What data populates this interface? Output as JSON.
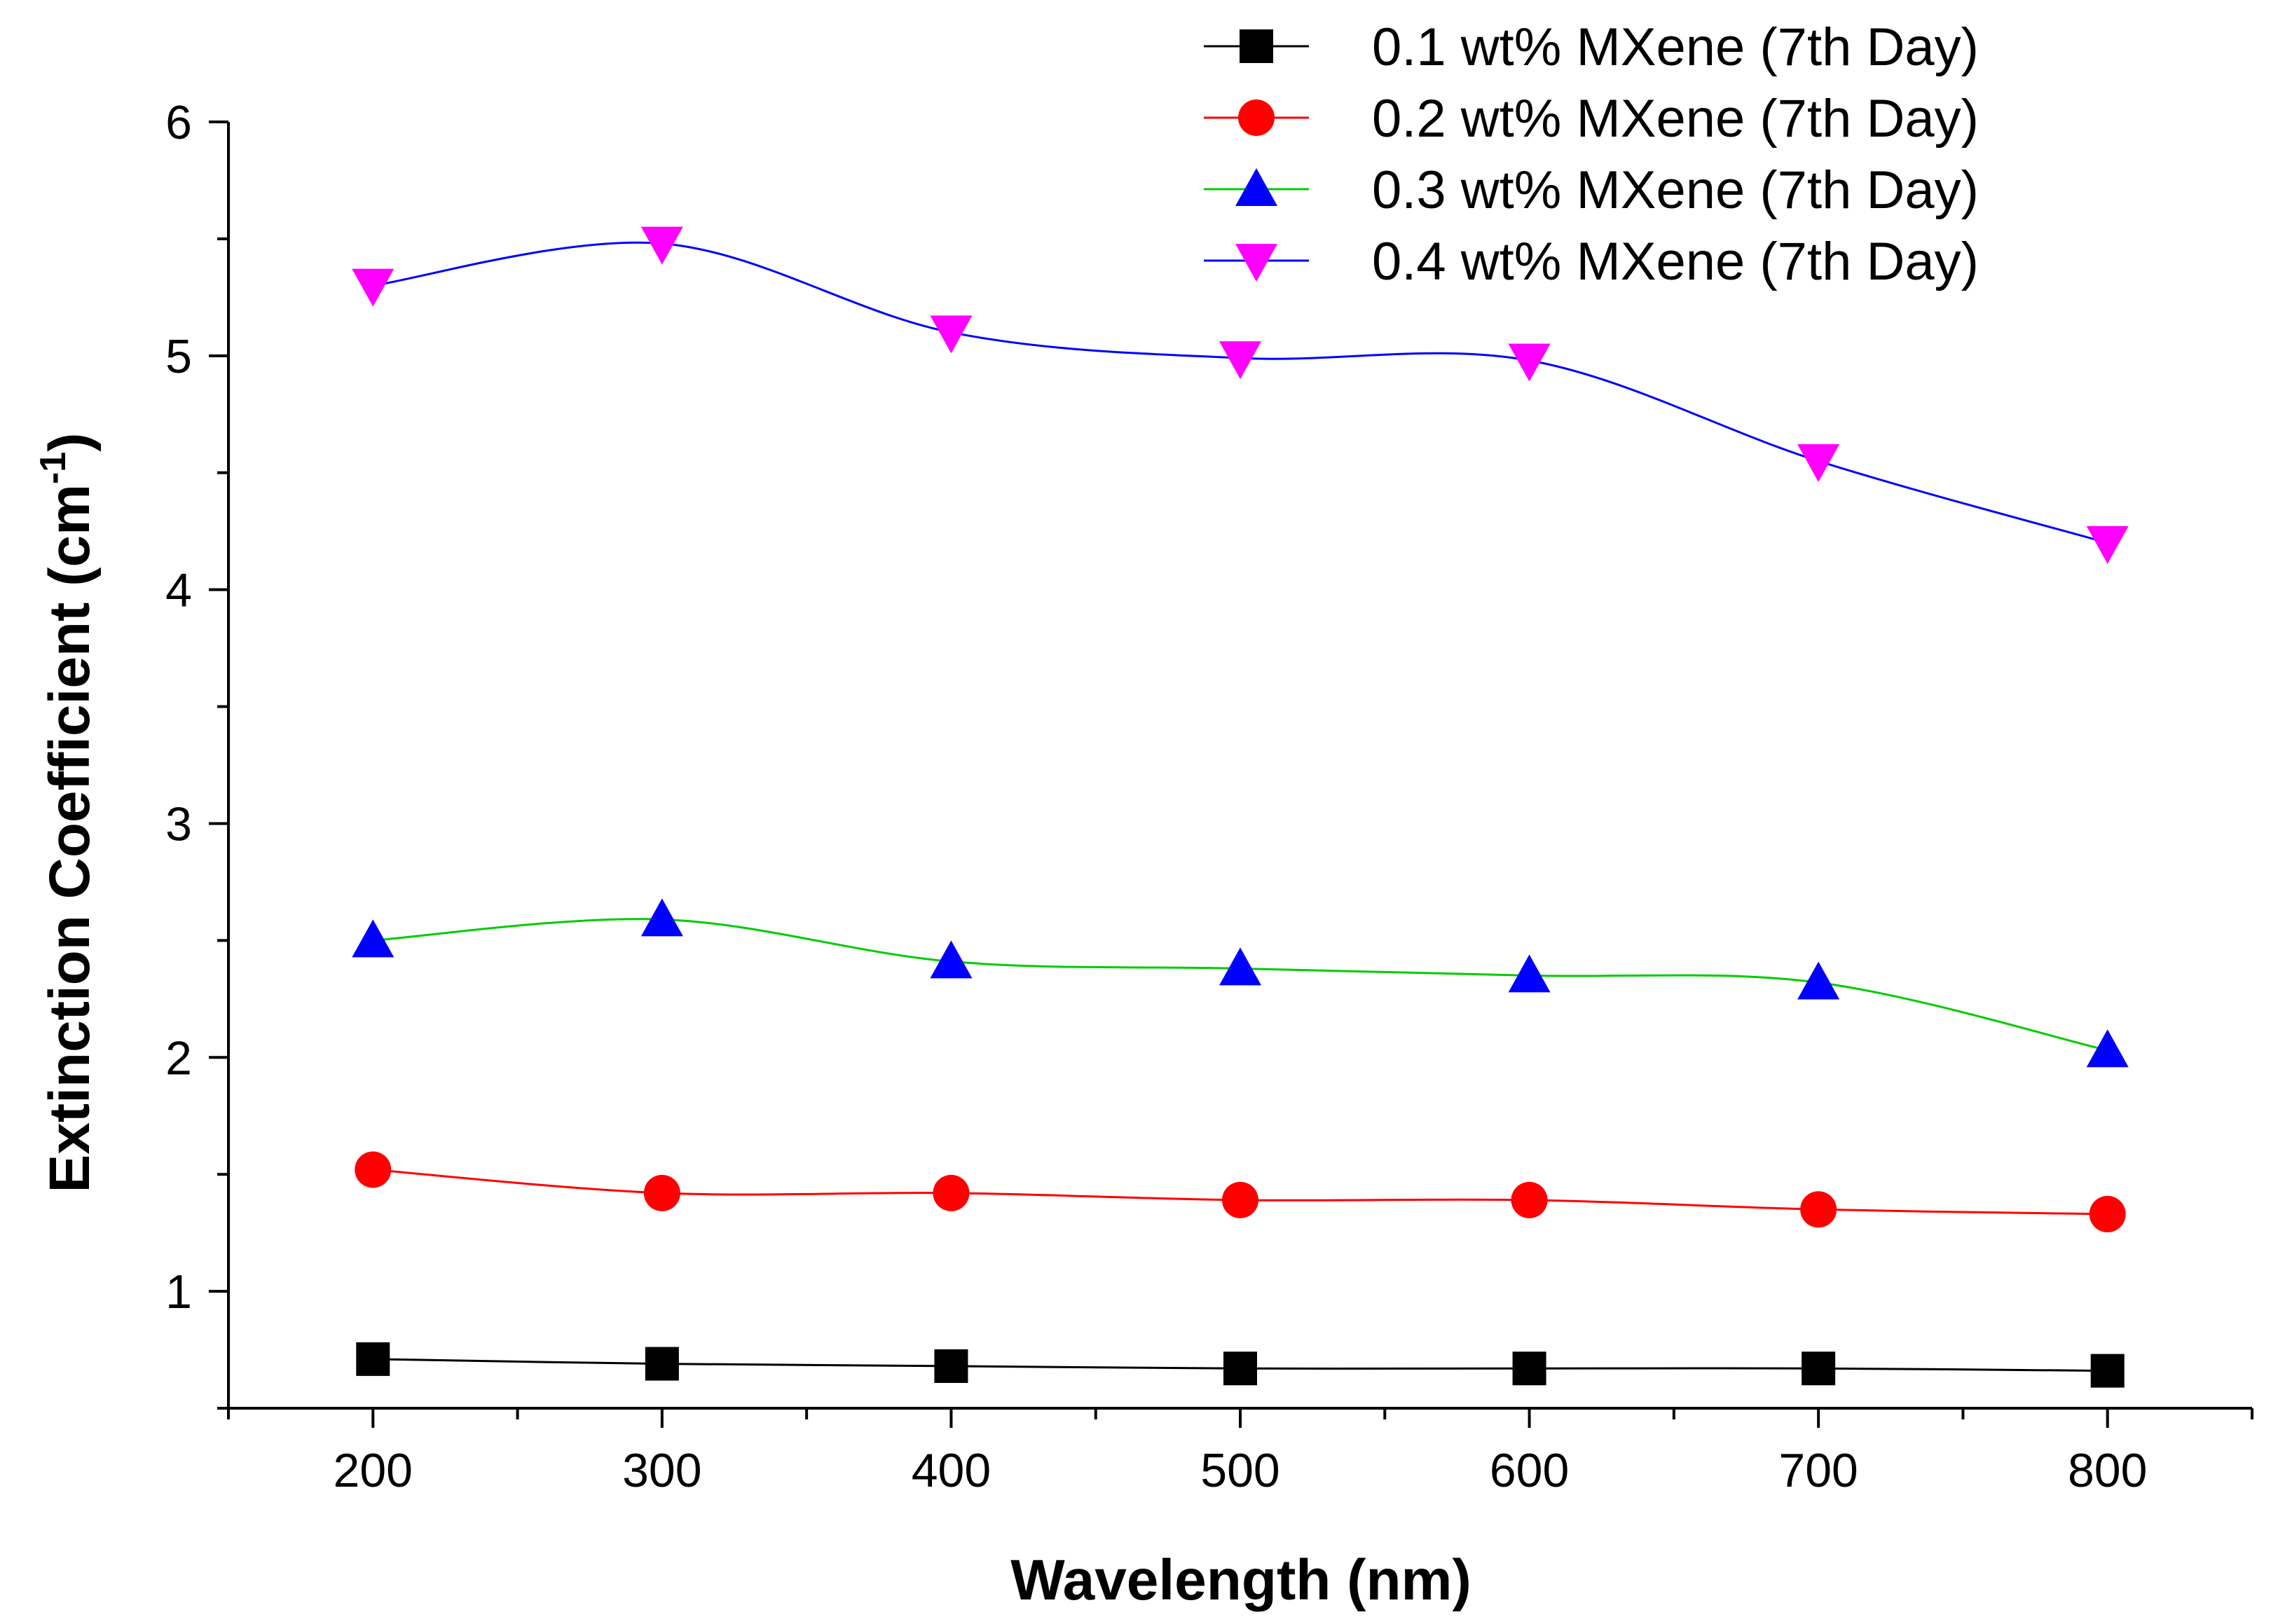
{
  "chart_data": {
    "type": "line",
    "title": "",
    "xlabel": "Wavelength (nm)",
    "ylabel_main": "Extinction Coefficient (cm",
    "ylabel_sup": "-1",
    "ylabel_close": ")",
    "xlim": [
      150,
      850
    ],
    "ylim": [
      0.5,
      6
    ],
    "x": [
      200,
      300,
      400,
      500,
      600,
      700,
      800
    ],
    "x_ticks": [
      200,
      300,
      400,
      500,
      600,
      700,
      800
    ],
    "x_tick_labels": [
      "200",
      "300",
      "400",
      "500",
      "600",
      "700",
      "800"
    ],
    "y_ticks": [
      1,
      2,
      3,
      4,
      5,
      6
    ],
    "y_tick_labels": [
      "1",
      "2",
      "3",
      "4",
      "5",
      "6"
    ],
    "grid": false,
    "legend_position": "top-right",
    "series": [
      {
        "name": "0.1 wt% MXene (7th Day)",
        "color": "#000000",
        "line_color": "#000000",
        "marker": "square",
        "values": [
          0.71,
          0.69,
          0.68,
          0.67,
          0.67,
          0.67,
          0.66
        ]
      },
      {
        "name": "0.2 wt% MXene (7th Day)",
        "color": "#ff0000",
        "line_color": "#ff0000",
        "marker": "circle",
        "values": [
          1.52,
          1.42,
          1.42,
          1.39,
          1.39,
          1.35,
          1.33
        ]
      },
      {
        "name": "0.3 wt% MXene (7th Day)",
        "color": "#0000ff",
        "line_color": "#00cc00",
        "marker": "triangle-up",
        "values": [
          2.5,
          2.59,
          2.41,
          2.38,
          2.35,
          2.32,
          2.03
        ]
      },
      {
        "name": "0.4 wt% MXene (7th Day)",
        "color": "#ff00ff",
        "line_color": "#0000ff",
        "marker": "triangle-down",
        "values": [
          5.3,
          5.48,
          5.1,
          4.99,
          4.98,
          4.55,
          4.2
        ]
      }
    ]
  }
}
